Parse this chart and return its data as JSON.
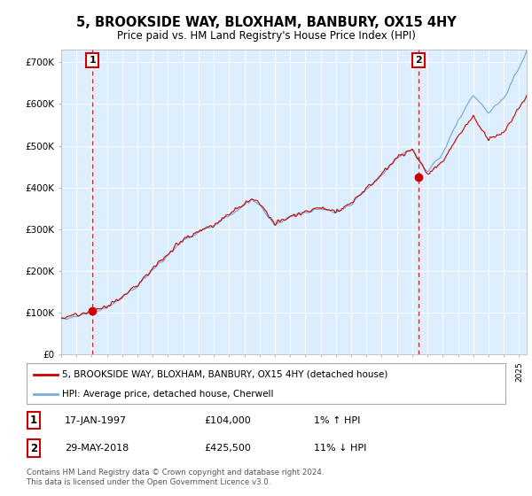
{
  "title": "5, BROOKSIDE WAY, BLOXHAM, BANBURY, OX15 4HY",
  "subtitle": "Price paid vs. HM Land Registry's House Price Index (HPI)",
  "ylabel_ticks": [
    "£0",
    "£100K",
    "£200K",
    "£300K",
    "£400K",
    "£500K",
    "£600K",
    "£700K"
  ],
  "ytick_values": [
    0,
    100000,
    200000,
    300000,
    400000,
    500000,
    600000,
    700000
  ],
  "ylim": [
    0,
    730000
  ],
  "xlim_start": 1995.0,
  "xlim_end": 2025.5,
  "hpi_color": "#7aaddb",
  "price_color": "#cc0000",
  "sale1_x": 1997.04,
  "sale1_y": 104000,
  "sale2_x": 2018.41,
  "sale2_y": 425500,
  "legend_line1": "5, BROOKSIDE WAY, BLOXHAM, BANBURY, OX15 4HY (detached house)",
  "legend_line2": "HPI: Average price, detached house, Cherwell",
  "footer": "Contains HM Land Registry data © Crown copyright and database right 2024.\nThis data is licensed under the Open Government Licence v3.0.",
  "background_color": "#ddeeff",
  "grid_color": "#ffffff"
}
